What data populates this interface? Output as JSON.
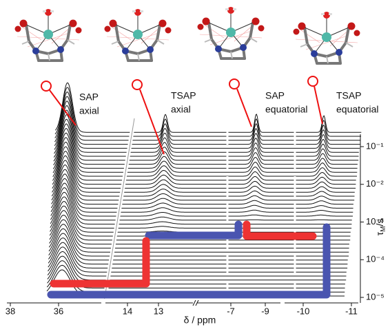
{
  "chart_data": {
    "type": "waterfall",
    "annotations": [
      {
        "lines": [
          "SAP",
          "axial"
        ]
      },
      {
        "lines": [
          "TSAP",
          "axial"
        ]
      },
      {
        "lines": [
          "SAP",
          "equatorial"
        ]
      },
      {
        "lines": [
          "TSAP",
          "equatorial"
        ]
      }
    ],
    "xlabel": "δ / ppm",
    "xticks": [
      38,
      36,
      14,
      13,
      -7,
      -9,
      -10,
      -11
    ],
    "y2label": {
      "symbol": "τ",
      "subscript": "M",
      "unit": "/s"
    },
    "y2scale": "log",
    "y2lim": [
      1e-05,
      0.1
    ],
    "y2ticks": [
      {
        "value": 0.1,
        "label": "10⁻¹"
      },
      {
        "value": 0.01,
        "label": "10⁻²"
      },
      {
        "value": 0.001,
        "label": "10⁻³"
      },
      {
        "value": 0.0001,
        "label": "10⁻⁴"
      },
      {
        "value": 1e-05,
        "label": "10⁻⁵"
      }
    ]
  }
}
